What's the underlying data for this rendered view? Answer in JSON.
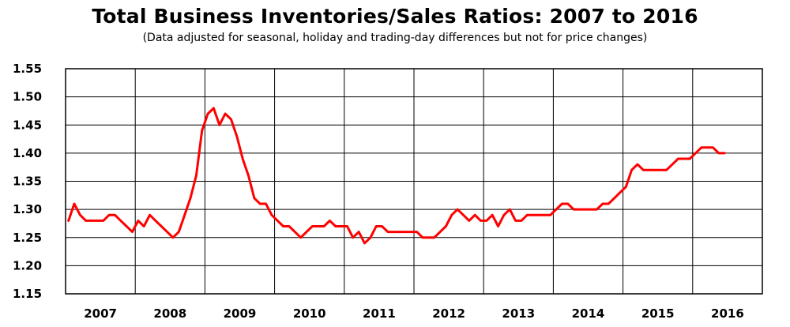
{
  "chart_data": {
    "type": "line",
    "title": "Total Business Inventories/Sales Ratios: 2007 to 2016",
    "subtitle": "(Data adjusted for seasonal, holiday and trading-day differences but not for price changes)",
    "xlabel": "",
    "ylabel": "",
    "ylim": [
      1.15,
      1.55
    ],
    "yticks": [
      "1.55",
      "1.50",
      "1.45",
      "1.40",
      "1.35",
      "1.30",
      "1.25",
      "1.20",
      "1.15"
    ],
    "year_labels": [
      "2007",
      "2008",
      "2009",
      "2010",
      "2011",
      "2012",
      "2013",
      "2014",
      "2015",
      "2016"
    ],
    "grid": true,
    "line_color": "#ff0000",
    "series": [
      {
        "values": [
          1.28,
          1.31,
          1.29,
          1.28,
          1.28,
          1.28,
          1.28,
          1.29,
          1.29,
          1.28,
          1.27,
          1.26,
          1.28,
          1.27,
          1.29,
          1.28,
          1.27,
          1.26,
          1.25,
          1.26,
          1.29,
          1.32,
          1.36,
          1.44,
          1.47,
          1.48,
          1.45,
          1.47,
          1.46,
          1.43,
          1.39,
          1.36,
          1.32,
          1.31,
          1.31,
          1.29,
          1.28,
          1.27,
          1.27,
          1.26,
          1.25,
          1.26,
          1.27,
          1.27,
          1.27,
          1.28,
          1.27,
          1.27,
          1.27,
          1.25,
          1.26,
          1.24,
          1.25,
          1.27,
          1.27,
          1.26,
          1.26,
          1.26,
          1.26,
          1.26,
          1.26,
          1.25,
          1.25,
          1.25,
          1.26,
          1.27,
          1.29,
          1.3,
          1.29,
          1.28,
          1.29,
          1.28,
          1.28,
          1.29,
          1.27,
          1.29,
          1.3,
          1.28,
          1.28,
          1.29,
          1.29,
          1.29,
          1.29,
          1.29,
          1.3,
          1.31,
          1.31,
          1.3,
          1.3,
          1.3,
          1.3,
          1.3,
          1.31,
          1.31,
          1.32,
          1.33,
          1.34,
          1.37,
          1.38,
          1.37,
          1.37,
          1.37,
          1.37,
          1.37,
          1.38,
          1.39,
          1.39,
          1.39,
          1.4,
          1.41,
          1.41,
          1.41,
          1.4,
          1.4
        ]
      }
    ]
  }
}
